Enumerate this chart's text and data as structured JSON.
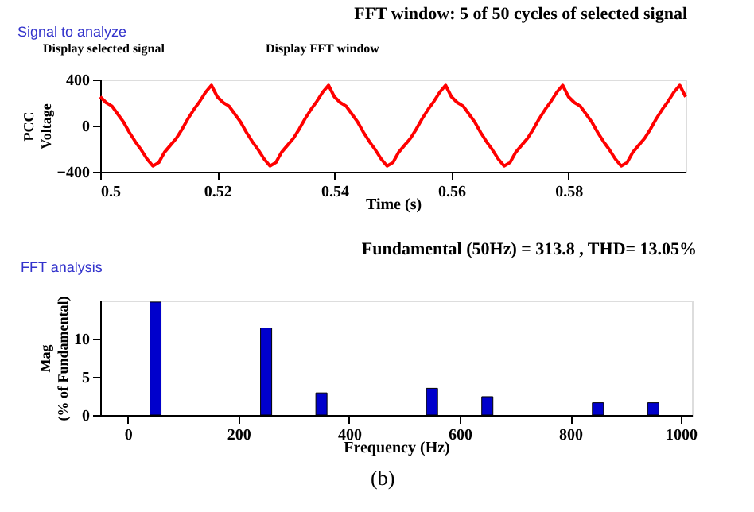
{
  "chart_data": [
    {
      "type": "line",
      "title": "FFT window: 5 of 50 cycles of selected signal",
      "xlabel": "Time (s)",
      "ylabel": "PCC Voltage",
      "annotations": [
        "Signal to analyze",
        "Display selected signal",
        "Display FFT window"
      ],
      "x": [
        0.5,
        0.501,
        0.502,
        0.503,
        0.504,
        0.505,
        0.506,
        0.507,
        0.508,
        0.509,
        0.51,
        0.511,
        0.512,
        0.513,
        0.514,
        0.515,
        0.516,
        0.517,
        0.518,
        0.519,
        0.52,
        0.521,
        0.522,
        0.523,
        0.524,
        0.525,
        0.526,
        0.527,
        0.528,
        0.529,
        0.53,
        0.531,
        0.532,
        0.533,
        0.534,
        0.535,
        0.536,
        0.537,
        0.538,
        0.539,
        0.54,
        0.541,
        0.542,
        0.543,
        0.544,
        0.545,
        0.546,
        0.547,
        0.548,
        0.549,
        0.55,
        0.551,
        0.552,
        0.553,
        0.554,
        0.555,
        0.556,
        0.557,
        0.558,
        0.559,
        0.56,
        0.561,
        0.562,
        0.563,
        0.564,
        0.565,
        0.566,
        0.567,
        0.568,
        0.569,
        0.57,
        0.571,
        0.572,
        0.573,
        0.574,
        0.575,
        0.576,
        0.577,
        0.578,
        0.579,
        0.58,
        0.581,
        0.582,
        0.583,
        0.584,
        0.585,
        0.586,
        0.587,
        0.588,
        0.589,
        0.59,
        0.591,
        0.592,
        0.593,
        0.594,
        0.595,
        0.596,
        0.597,
        0.598,
        0.599,
        0.6
      ],
      "series": [
        {
          "color": "#ff0000",
          "values": [
            250,
            200,
            170,
            100,
            30,
            -60,
            -140,
            -210,
            -290,
            -350,
            -320,
            -230,
            -170,
            -110,
            -30,
            60,
            140,
            210,
            290,
            350,
            250,
            200,
            170,
            100,
            30,
            -60,
            -140,
            -210,
            -290,
            -350,
            -320,
            -230,
            -170,
            -110,
            -30,
            60,
            140,
            210,
            290,
            350,
            250,
            200,
            170,
            100,
            30,
            -60,
            -140,
            -210,
            -290,
            -350,
            -320,
            -230,
            -170,
            -110,
            -30,
            60,
            140,
            210,
            290,
            350,
            250,
            200,
            170,
            100,
            30,
            -60,
            -140,
            -210,
            -290,
            -350,
            -320,
            -230,
            -170,
            -110,
            -30,
            60,
            140,
            210,
            290,
            350,
            250,
            200,
            170,
            100,
            30,
            -60,
            -140,
            -210,
            -290,
            -350,
            -320,
            -230,
            -170,
            -110,
            -30,
            60,
            140,
            210,
            290,
            350,
            250
          ]
        }
      ],
      "xlim": [
        0.5,
        0.6
      ],
      "xticks": [
        0.5,
        0.52,
        0.54,
        0.56,
        0.58
      ],
      "ylim": [
        -400,
        400
      ],
      "yticks": [
        -400,
        0,
        400
      ],
      "grid": false
    },
    {
      "type": "bar",
      "title": "Fundamental (50Hz) = 313.8 , THD= 13.05%",
      "xlabel": "Frequency (Hz)",
      "ylabel": "Mag (% of Fundamental)",
      "annotations": [
        "FFT analysis",
        "(b)"
      ],
      "x": [
        50,
        250,
        350,
        550,
        650,
        850,
        950
      ],
      "series": [
        {
          "color": "#0000cc",
          "values": [
            14.8,
            11.4,
            2.9,
            3.5,
            2.4,
            1.6,
            1.6
          ]
        }
      ],
      "xlim": [
        -50,
        1020
      ],
      "xticks": [
        0,
        200,
        400,
        600,
        800,
        1000
      ],
      "ylim": [
        0,
        15
      ],
      "yticks": [
        0,
        5,
        10
      ],
      "grid": false
    }
  ]
}
